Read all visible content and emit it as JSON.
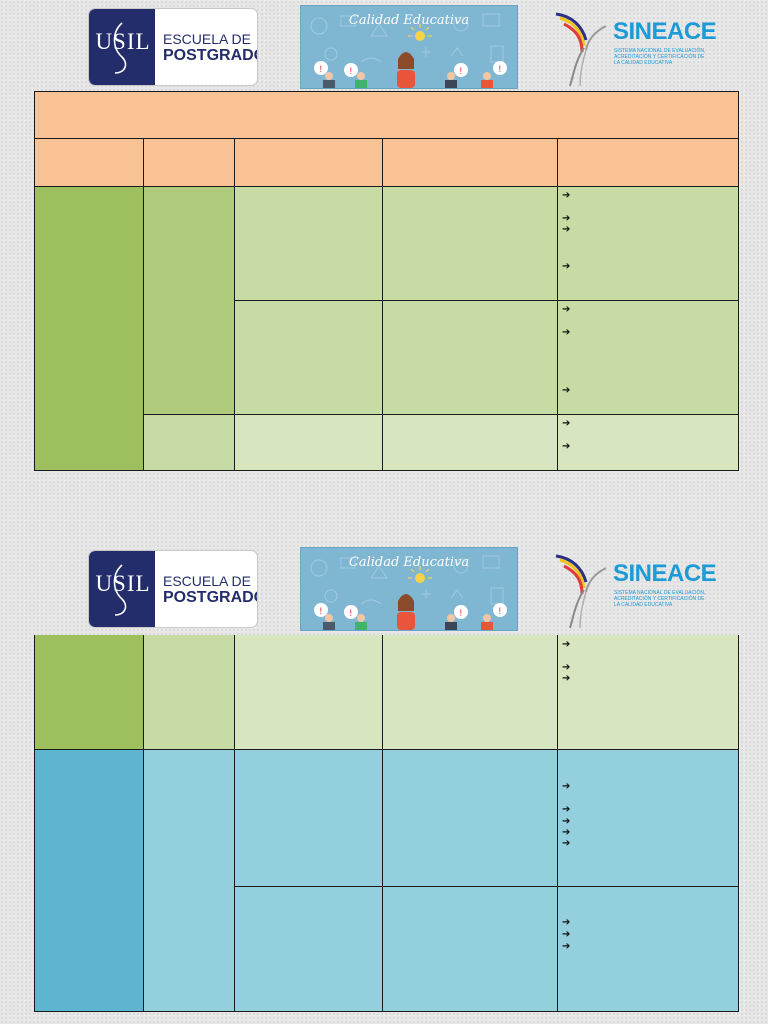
{
  "header": {
    "usil": {
      "mark": "USIL",
      "line1": "ESCUELA DE",
      "line2": "POSTGRADO"
    },
    "calidad": {
      "title": "Calidad Educativa"
    },
    "sineace": {
      "name": "SINEACE",
      "subtitle": "SISTEMA NACIONAL DE EVALUACIÓN, ACREDITACIÓN Y CERTIFICACIÓN DE LA CALIDAD EDUCATIVA"
    }
  },
  "colors": {
    "title_row": "#f8c295",
    "green_dark": "#9ebf5d",
    "green_mid": "#afcb7b",
    "green_light": "#c7dba4",
    "green_pale": "#d8e6c0",
    "blue_dark": "#5db5cf",
    "blue_light": "#93cfdd",
    "border": "#1a1a1a"
  },
  "icons": {
    "arrow": "➔"
  },
  "table1": {
    "title": "",
    "headers": [
      "",
      "",
      "",
      "",
      ""
    ]
  },
  "table2": {}
}
